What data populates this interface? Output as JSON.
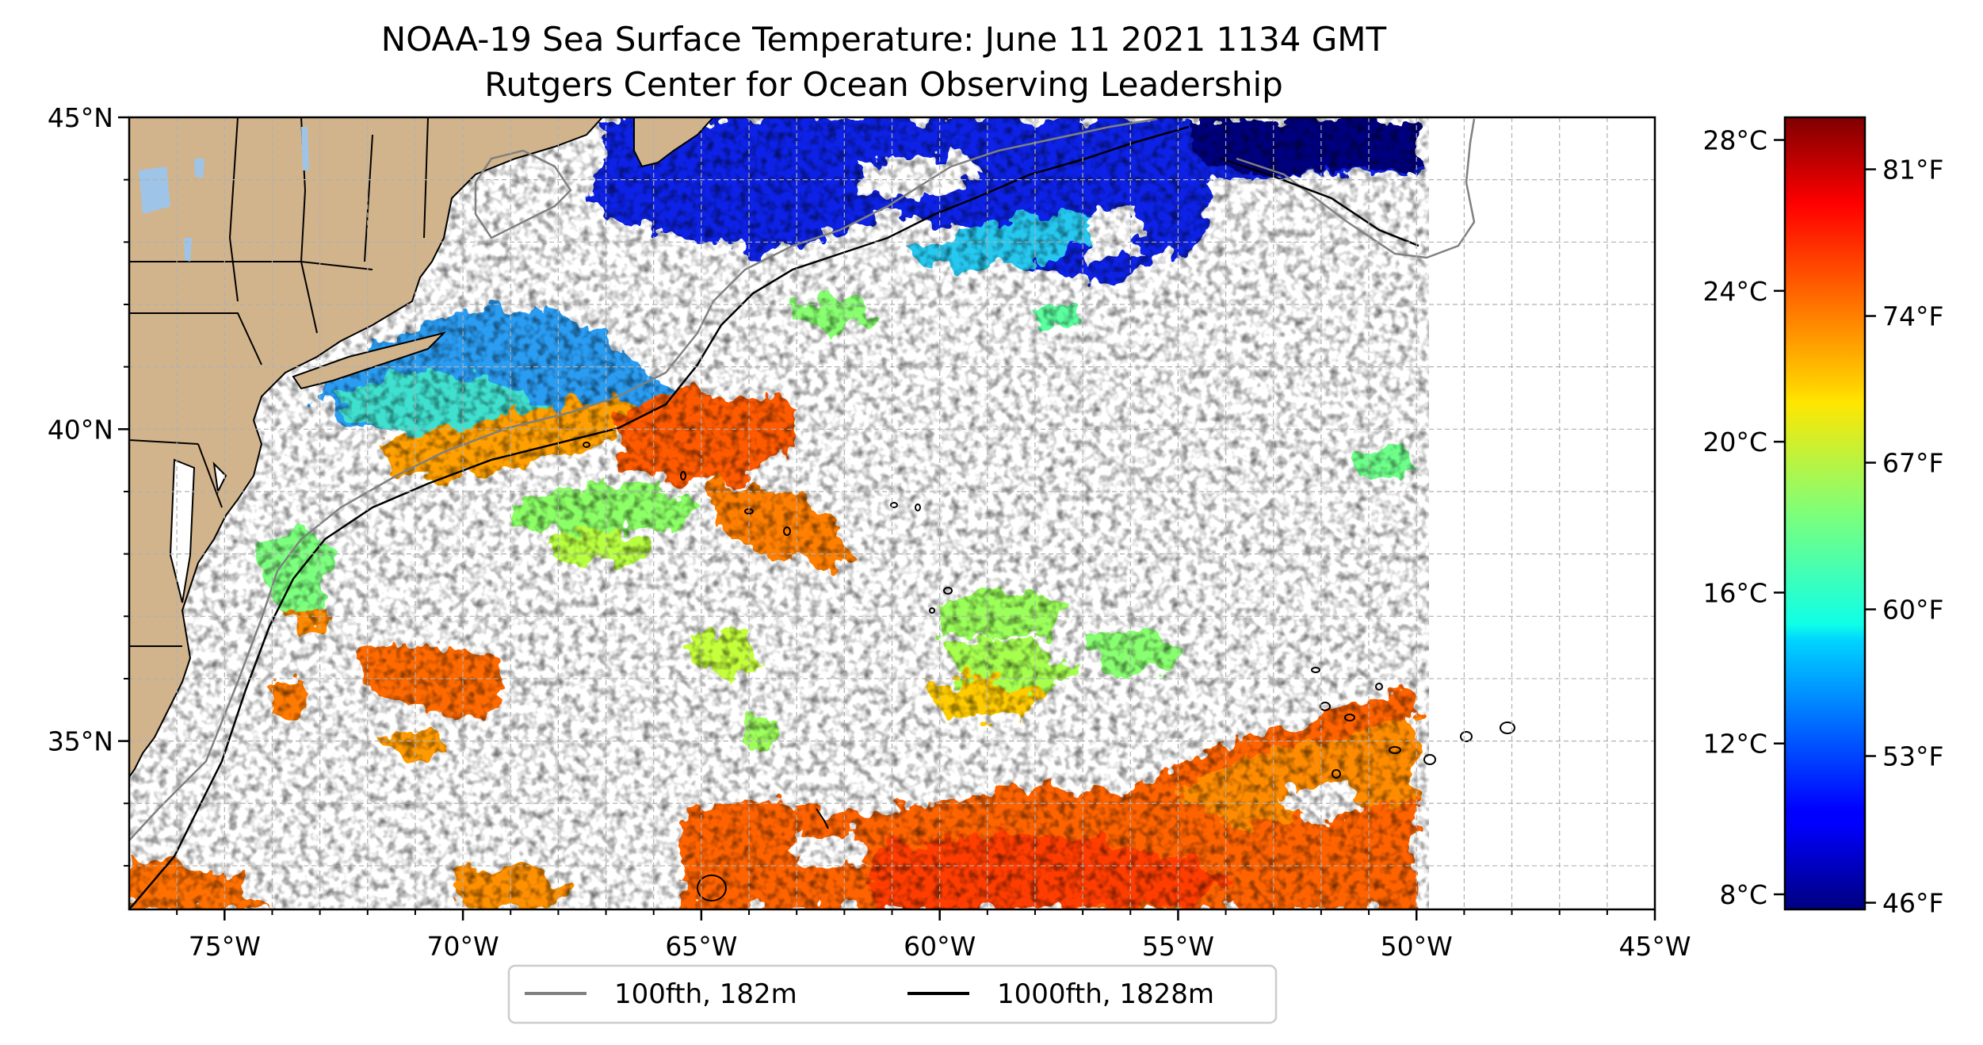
{
  "title": "NOAA-19 Sea Surface Temperature: June 11 2021 1134 GMT",
  "subtitle": "Rutgers Center for Ocean Observing Leadership",
  "map": {
    "lon_range": [
      -77,
      -45
    ],
    "lat_range": [
      32.3,
      45
    ],
    "lon_tick_labels": [
      "75°W",
      "70°W",
      "65°W",
      "60°W",
      "55°W",
      "50°W",
      "45°W"
    ],
    "lat_tick_labels": [
      "45°N",
      "40°N",
      "35°N"
    ],
    "lon_ticks": [
      -75,
      -70,
      -65,
      -60,
      -55,
      -50,
      -45
    ],
    "lat_ticks": [
      45,
      40,
      35
    ],
    "gridlines": true,
    "land_color": "#d2b48c",
    "lake_color": "#9ec4e8"
  },
  "colorbar": {
    "colormap": "jet",
    "range_c": [
      7.6,
      28.6
    ],
    "celsius_ticks": [
      28,
      24,
      20,
      16,
      12,
      8
    ],
    "celsius_labels": [
      "28°C",
      "24°C",
      "20°C",
      "16°C",
      "12°C",
      "8°C"
    ],
    "fahrenheit_ticks": [
      81,
      74,
      67,
      60,
      53,
      46
    ],
    "fahrenheit_labels": [
      "81°F",
      "74°F",
      "67°F",
      "60°F",
      "53°F",
      "46°F"
    ]
  },
  "legend": {
    "items": [
      {
        "label": "100fth, 182m",
        "color": "#808080"
      },
      {
        "label": "1000fth, 1828m",
        "color": "#000000"
      }
    ]
  }
}
